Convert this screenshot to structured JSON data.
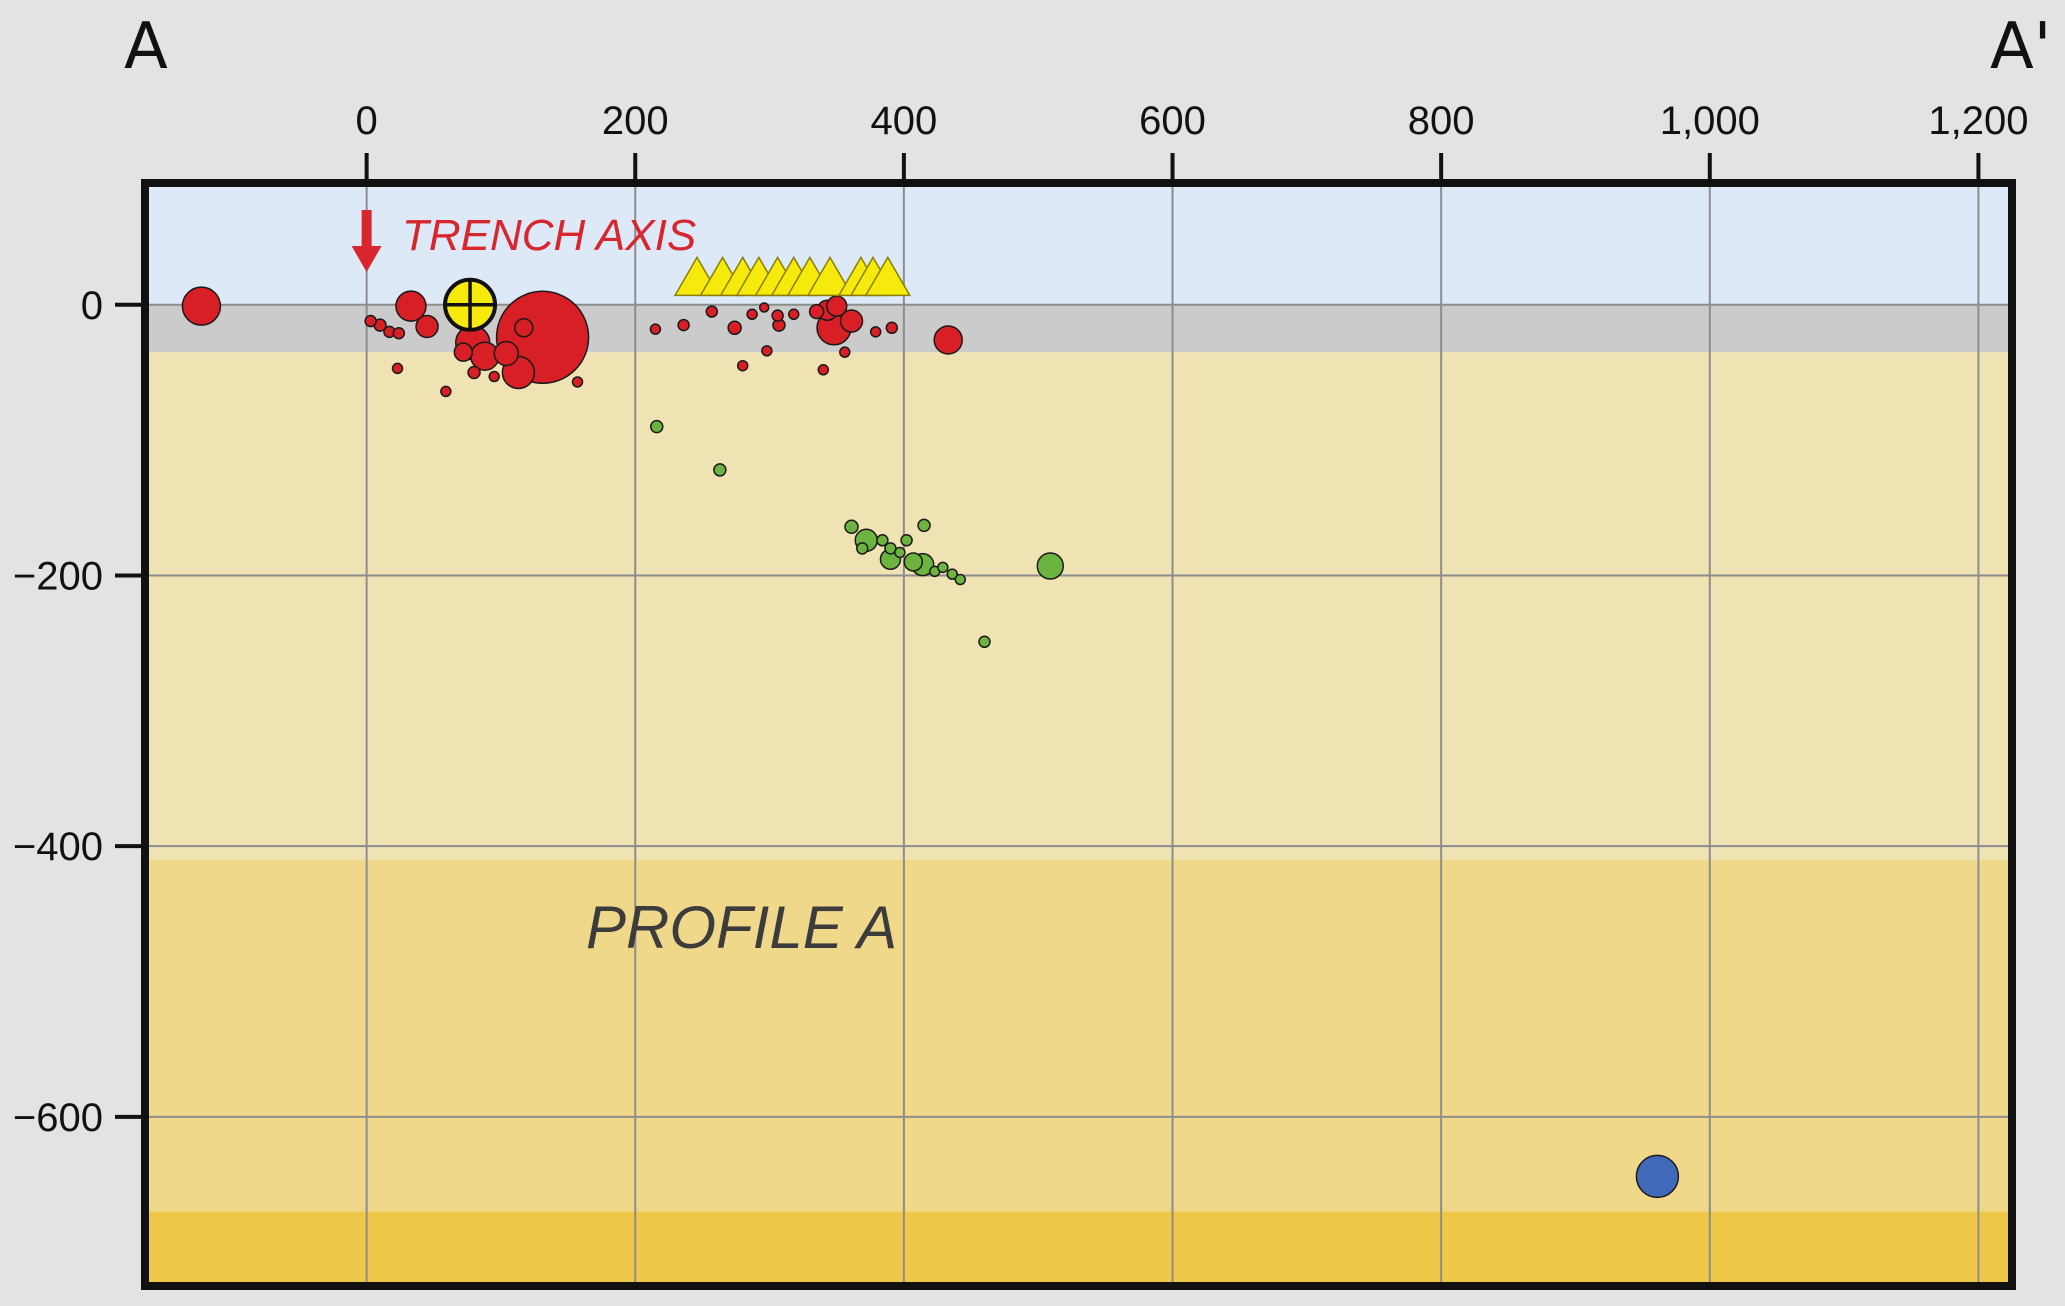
{
  "corner_labels": {
    "left": "A",
    "right": "A'"
  },
  "annotations": {
    "trench_axis": "TRENCH AXIS",
    "profile": "PROFILE A"
  },
  "colors": {
    "background": "#e3e3e3",
    "air": "#dde9f7",
    "water": "#cbcbcb",
    "layer1": "#f0e3b3",
    "layer2": "#f0d88a",
    "layer3": "#efc84a",
    "grid": "#8d8d8d",
    "shallow_events": "#d71f25",
    "intermediate_events": "#6cb43f",
    "deep_events": "#4169b9",
    "volcanoes": "#f6ea0c",
    "trench_arrow": "#d7262e"
  },
  "chart_data": {
    "type": "scatter",
    "xlim": [
      -165,
      1225
    ],
    "ylim": [
      -725,
      90
    ],
    "x_ticks": [
      0,
      200,
      400,
      600,
      800,
      1000,
      1200
    ],
    "x_tick_labels": [
      "0",
      "200",
      "400",
      "600",
      "800",
      "1,000",
      "1,200"
    ],
    "y_ticks": [
      0,
      -200,
      -400,
      -600
    ],
    "y_tick_labels": [
      "0",
      "−200",
      "−400",
      "−600"
    ],
    "grid": true,
    "trench_axis_x": 0,
    "layers": [
      {
        "name": "air",
        "top": 90,
        "bottom": 0
      },
      {
        "name": "water",
        "top": 0,
        "bottom": -35
      },
      {
        "name": "layer1",
        "top": -35,
        "bottom": -410
      },
      {
        "name": "layer2",
        "top": -410,
        "bottom": -670
      },
      {
        "name": "layer3",
        "top": -670,
        "bottom": -725
      }
    ],
    "mainshock": {
      "x": 77,
      "y": 0,
      "size": 50
    },
    "series": [
      {
        "group": "shallow",
        "points": [
          {
            "x": -123,
            "y": -1,
            "size": 38
          },
          {
            "x": 33,
            "y": -1,
            "size": 30
          },
          {
            "x": 45,
            "y": -16,
            "size": 22
          },
          {
            "x": 3,
            "y": -12,
            "size": 11
          },
          {
            "x": 10,
            "y": -15,
            "size": 12
          },
          {
            "x": 17,
            "y": -20,
            "size": 11
          },
          {
            "x": 24,
            "y": -21,
            "size": 11
          },
          {
            "x": 23,
            "y": -47,
            "size": 10
          },
          {
            "x": 59,
            "y": -64,
            "size": 10
          },
          {
            "x": 79,
            "y": -28,
            "size": 34
          },
          {
            "x": 88,
            "y": -38,
            "size": 28
          },
          {
            "x": 72,
            "y": -35,
            "size": 18
          },
          {
            "x": 80,
            "y": -50,
            "size": 12
          },
          {
            "x": 95,
            "y": -53,
            "size": 10
          },
          {
            "x": 113,
            "y": -50,
            "size": 32
          },
          {
            "x": 104,
            "y": -36,
            "size": 24
          },
          {
            "x": 131,
            "y": -24,
            "size": 92
          },
          {
            "x": 117,
            "y": -17,
            "size": 18
          },
          {
            "x": 157,
            "y": -57,
            "size": 10
          },
          {
            "x": 215,
            "y": -18,
            "size": 10
          },
          {
            "x": 236,
            "y": -15,
            "size": 11
          },
          {
            "x": 257,
            "y": -5,
            "size": 11
          },
          {
            "x": 274,
            "y": -17,
            "size": 13
          },
          {
            "x": 280,
            "y": -45,
            "size": 10
          },
          {
            "x": 287,
            "y": -7,
            "size": 10
          },
          {
            "x": 296,
            "y": -2,
            "size": 9
          },
          {
            "x": 298,
            "y": -34,
            "size": 10
          },
          {
            "x": 306,
            "y": -8,
            "size": 11
          },
          {
            "x": 307,
            "y": -15,
            "size": 12
          },
          {
            "x": 318,
            "y": -7,
            "size": 10
          },
          {
            "x": 335,
            "y": -5,
            "size": 14
          },
          {
            "x": 340,
            "y": -48,
            "size": 10
          },
          {
            "x": 343,
            "y": -4,
            "size": 20
          },
          {
            "x": 350,
            "y": -1,
            "size": 20
          },
          {
            "x": 348,
            "y": -17,
            "size": 34
          },
          {
            "x": 361,
            "y": -12,
            "size": 22
          },
          {
            "x": 356,
            "y": -35,
            "size": 10
          },
          {
            "x": 379,
            "y": -20,
            "size": 10
          },
          {
            "x": 391,
            "y": -17,
            "size": 11
          },
          {
            "x": 433,
            "y": -26,
            "size": 28
          }
        ]
      },
      {
        "group": "intermediate",
        "points": [
          {
            "x": 216,
            "y": -90,
            "size": 12
          },
          {
            "x": 263,
            "y": -122,
            "size": 12
          },
          {
            "x": 361,
            "y": -164,
            "size": 13
          },
          {
            "x": 372,
            "y": -174,
            "size": 22
          },
          {
            "x": 369,
            "y": -180,
            "size": 11
          },
          {
            "x": 384,
            "y": -174,
            "size": 11
          },
          {
            "x": 390,
            "y": -180,
            "size": 11
          },
          {
            "x": 397,
            "y": -183,
            "size": 10
          },
          {
            "x": 402,
            "y": -174,
            "size": 11
          },
          {
            "x": 390,
            "y": -188,
            "size": 20
          },
          {
            "x": 407,
            "y": -190,
            "size": 18
          },
          {
            "x": 414,
            "y": -192,
            "size": 22
          },
          {
            "x": 415,
            "y": -163,
            "size": 12
          },
          {
            "x": 423,
            "y": -197,
            "size": 10
          },
          {
            "x": 429,
            "y": -194,
            "size": 10
          },
          {
            "x": 436,
            "y": -199,
            "size": 10
          },
          {
            "x": 442,
            "y": -203,
            "size": 10
          },
          {
            "x": 460,
            "y": -249,
            "size": 11
          },
          {
            "x": 509,
            "y": -193,
            "size": 26
          }
        ]
      },
      {
        "group": "deep",
        "points": [
          {
            "x": 961,
            "y": -644,
            "size": 42
          }
        ]
      },
      {
        "group": "volcanoes",
        "points": [
          {
            "x": 246,
            "y": 21
          },
          {
            "x": 265,
            "y": 21
          },
          {
            "x": 280,
            "y": 21
          },
          {
            "x": 292,
            "y": 21
          },
          {
            "x": 306,
            "y": 21
          },
          {
            "x": 318,
            "y": 21
          },
          {
            "x": 330,
            "y": 21
          },
          {
            "x": 345,
            "y": 21
          },
          {
            "x": 368,
            "y": 21
          },
          {
            "x": 377,
            "y": 21
          },
          {
            "x": 388,
            "y": 21
          }
        ]
      }
    ]
  }
}
